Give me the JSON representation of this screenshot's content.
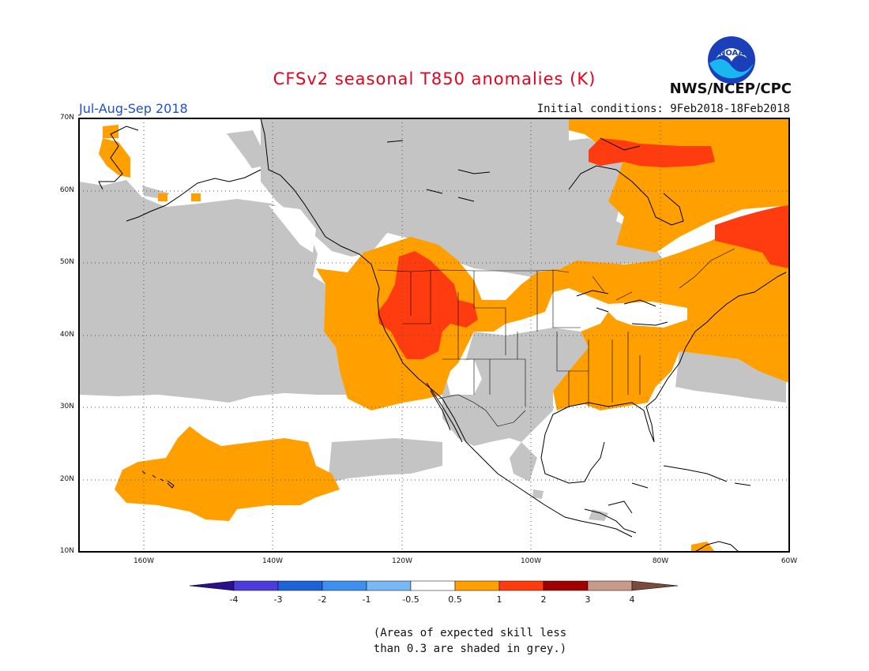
{
  "header": {
    "title": "CFSv2 seasonal T850 anomalies (K)",
    "season": "Jul-Aug-Sep 2018",
    "agency": "NWS/NCEP/CPC",
    "initial_conditions": "Initial conditions: 9Feb2018-18Feb2018",
    "logo_text": "NOAA"
  },
  "map": {
    "lon_range": [
      -170,
      -60
    ],
    "lat_range": [
      10,
      70
    ],
    "lat_labels": [
      "70N",
      "60N",
      "50N",
      "40N",
      "30N",
      "20N",
      "10N"
    ],
    "lon_labels": [
      "160W",
      "140W",
      "120W",
      "100W",
      "80W",
      "60W"
    ],
    "colors": {
      "grey": "#c4c4c4",
      "orange": "#ff9f00",
      "red": "#ff3b10"
    }
  },
  "colorbar": {
    "labels": [
      "-4",
      "-3",
      "-2",
      "-1",
      "-0.5",
      "0.5",
      "1",
      "2",
      "3",
      "4"
    ],
    "colors": [
      "#2c0f8c",
      "#4b3ddb",
      "#1d62d9",
      "#3d8ff0",
      "#7ab8f5",
      "#ffffff",
      "#ff9f00",
      "#ff3b10",
      "#a00000",
      "#c89a8a",
      "#7a4a3a"
    ]
  },
  "note": {
    "line1": "(Areas of expected skill less",
    "line2": "than 0.3 are shaded in grey.)"
  }
}
